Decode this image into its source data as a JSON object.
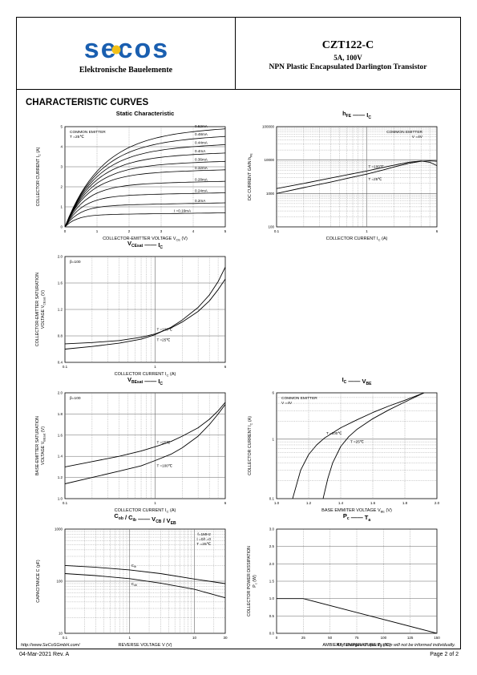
{
  "header": {
    "logo_text": "secos",
    "company": "Elektronische Bauelemente",
    "part_number": "CZT122-C",
    "rating": "5A, 100V",
    "description": "NPN Plastic Encapsulated Darlington Transistor",
    "logo_color": "#1a5fb0",
    "logo_accent": "#f2c018"
  },
  "section_title": "CHARACTERISTIC CURVES",
  "footer": {
    "url": "http://www.SeCoSGmbH.com/",
    "note": "Any changes of specification will not be informed individually.",
    "revision": "04-Mar-2021  Rev. A",
    "page": "Page  2  of  2"
  },
  "chart_data": [
    {
      "id": "static",
      "type": "line",
      "title": "Static Characteristic",
      "xlabel": "COLLECTOR-EMITTER VOLTAGE   V",
      "xlabel_sub": "CE",
      "xlabel_unit": "(V)",
      "ylabel": "COLLECTOR CURRENT   I",
      "ylabel_sub": "C",
      "ylabel_unit": "(A)",
      "xscale": "linear",
      "yscale": "linear",
      "xlim": [
        0,
        5
      ],
      "ylim": [
        0,
        5
      ],
      "xticks": [
        0,
        1,
        2,
        3,
        4,
        5
      ],
      "yticks": [
        0,
        1,
        2,
        3,
        4,
        5
      ],
      "xtick_labels": [
        "0",
        "1",
        "2",
        "3",
        "4",
        "5"
      ],
      "ytick_labels": [
        "0",
        "1",
        "2",
        "3",
        "4",
        "5"
      ],
      "notes": [
        "COMMON EMITTER",
        "T =25℃"
      ],
      "note_pos": "top-left",
      "series": [
        {
          "label": "0.52mA",
          "sat": 4.65,
          "slope": 0.06
        },
        {
          "label": "0.48mA",
          "sat": 4.25,
          "slope": 0.06
        },
        {
          "label": "0.44mA",
          "sat": 3.85,
          "slope": 0.055
        },
        {
          "label": "0.4mA",
          "sat": 3.45,
          "slope": 0.05
        },
        {
          "label": "0.36mA",
          "sat": 3.05,
          "slope": 0.045
        },
        {
          "label": "0.32mA",
          "sat": 2.65,
          "slope": 0.04
        },
        {
          "label": "0.28mA",
          "sat": 2.1,
          "slope": 0.035
        },
        {
          "label": "0.24mA",
          "sat": 1.55,
          "slope": 0.03
        },
        {
          "label": "0.2mA",
          "sat": 1.05,
          "slope": 0.03
        },
        {
          "label": "I =0.16mA",
          "sat": 0.6,
          "slope": 0.02
        }
      ]
    },
    {
      "id": "hfe",
      "type": "line",
      "title": "h",
      "title_sub": "FE",
      "title_sep": "——",
      "title_right": "I",
      "title_right_sub": "C",
      "xlabel": "COLLECTOR CURRENT   I",
      "xlabel_sub": "C",
      "xlabel_unit": "(A)",
      "ylabel": "DC CURRENT GAIN   h",
      "ylabel_sub": "FE",
      "ylabel_unit": "",
      "xscale": "log",
      "yscale": "log",
      "xlim": [
        0.1,
        6
      ],
      "ylim": [
        100,
        100000
      ],
      "xticks": [
        0.1,
        1,
        6
      ],
      "yticks": [
        100,
        1000,
        10000,
        100000
      ],
      "xtick_labels": [
        "0.1",
        "1",
        "6"
      ],
      "ytick_labels": [
        "100",
        "1000",
        "10000",
        "100000"
      ],
      "notes": [
        "COMMON EMITTER",
        "V =4V"
      ],
      "note_pos": "top-right",
      "series": [
        {
          "label": "T =100℃",
          "x": [
            0.1,
            0.2,
            0.4,
            0.7,
            1,
            1.5,
            2,
            3,
            4,
            5,
            6
          ],
          "y": [
            1400,
            2000,
            2900,
            3900,
            4700,
            6000,
            7000,
            8700,
            9400,
            8600,
            6800
          ]
        },
        {
          "label": "T =25℃",
          "x": [
            0.1,
            0.2,
            0.4,
            0.7,
            1,
            1.5,
            2,
            3,
            4,
            5,
            6
          ],
          "y": [
            1000,
            1500,
            2200,
            3100,
            3800,
            5000,
            6200,
            8100,
            9200,
            9500,
            9300
          ]
        }
      ]
    },
    {
      "id": "vcesat",
      "type": "line",
      "title": "V",
      "title_sub": "CEsat",
      "title_sep": "——",
      "title_right": "I",
      "title_right_sub": "C",
      "xlabel": "COLLECTOR CURRENT   I",
      "xlabel_sub": "C",
      "xlabel_unit": "(A)",
      "ylabel": "COLLECTOR-EMITTER SATURATION\nVOLTAGE   V",
      "ylabel_sub": "CEsat",
      "ylabel_unit": "(V)",
      "xscale": "log",
      "yscale": "linear",
      "xlim": [
        0.1,
        6
      ],
      "ylim": [
        0.4,
        2.0
      ],
      "xticks": [
        0.1,
        1,
        6
      ],
      "yticks": [
        0.4,
        0.8,
        1.2,
        1.6,
        2.0
      ],
      "xtick_labels": [
        "0.1",
        "1",
        "6"
      ],
      "ytick_labels": [
        "0.4",
        "0.8",
        "1.2",
        "1.6",
        "2.0"
      ],
      "notes": [
        "β=100"
      ],
      "note_pos": "top-left",
      "series": [
        {
          "label": "T =100℃",
          "x": [
            0.1,
            0.2,
            0.4,
            0.7,
            1,
            1.5,
            2,
            3,
            4,
            5,
            6
          ],
          "y": [
            0.68,
            0.7,
            0.73,
            0.78,
            0.83,
            0.92,
            1.01,
            1.17,
            1.33,
            1.5,
            1.66
          ]
        },
        {
          "label": "T =25℃",
          "x": [
            0.1,
            0.2,
            0.4,
            0.7,
            1,
            1.5,
            2,
            3,
            4,
            5,
            6
          ],
          "y": [
            0.6,
            0.64,
            0.69,
            0.75,
            0.82,
            0.93,
            1.04,
            1.23,
            1.42,
            1.62,
            1.84
          ]
        }
      ]
    },
    {
      "id": "vbesat",
      "type": "line",
      "title": "V",
      "title_sub": "BEsat",
      "title_sep": "——",
      "title_right": "I",
      "title_right_sub": "C",
      "xlabel": "COLLECTOR CURRENT   I",
      "xlabel_sub": "C",
      "xlabel_unit": "(A)",
      "ylabel": "BASE-EMITTER SATURATION\nVOLTAGE   V",
      "ylabel_sub": "BEsat",
      "ylabel_unit": "(V)",
      "xscale": "log",
      "yscale": "linear",
      "xlim": [
        0.1,
        6
      ],
      "ylim": [
        1.0,
        2.0
      ],
      "xticks": [
        0.1,
        1,
        6
      ],
      "yticks": [
        1.0,
        1.2,
        1.4,
        1.6,
        1.8,
        2.0
      ],
      "xtick_labels": [
        "0.1",
        "1",
        "6"
      ],
      "ytick_labels": [
        "1.0",
        "1.2",
        "1.4",
        "1.6",
        "1.8",
        "2.0"
      ],
      "notes": [
        "β=100"
      ],
      "note_pos": "top-left",
      "series": [
        {
          "label": "T =25℃",
          "x": [
            0.1,
            0.2,
            0.4,
            0.7,
            1,
            1.5,
            2,
            3,
            4,
            5,
            6
          ],
          "y": [
            1.3,
            1.35,
            1.4,
            1.45,
            1.49,
            1.54,
            1.59,
            1.67,
            1.75,
            1.83,
            1.91
          ]
        },
        {
          "label": "T =100℃",
          "x": [
            0.1,
            0.2,
            0.4,
            0.7,
            1,
            1.5,
            2,
            3,
            4,
            5,
            6
          ],
          "y": [
            1.14,
            1.2,
            1.26,
            1.31,
            1.36,
            1.42,
            1.48,
            1.59,
            1.7,
            1.8,
            1.89
          ]
        }
      ]
    },
    {
      "id": "icvbe",
      "type": "line",
      "title": "I",
      "title_sub": "C",
      "title_sep": "——",
      "title_right": "V",
      "title_right_sub": "BE",
      "xlabel": "BASE EMMITER VOLTAGE   V",
      "xlabel_sub": "BE",
      "xlabel_unit": "(V)",
      "ylabel": "COLLECTOR CURRENT   I",
      "ylabel_sub": "C",
      "ylabel_unit": "(A)",
      "xscale": "linear",
      "yscale": "log",
      "xlim": [
        1.0,
        2.0
      ],
      "ylim": [
        0.1,
        6
      ],
      "xticks": [
        1.0,
        1.2,
        1.4,
        1.6,
        1.8,
        2.0
      ],
      "yticks": [
        0.1,
        1,
        6
      ],
      "xtick_labels": [
        "1.0",
        "1.2",
        "1.4",
        "1.6",
        "1.8",
        "2.0"
      ],
      "ytick_labels": [
        "0.1",
        "1",
        "6"
      ],
      "notes": [
        "COMMON EMITTER",
        "V =4V"
      ],
      "note_pos": "top-left",
      "series": [
        {
          "label": "T =100℃",
          "x": [
            1.1,
            1.15,
            1.2,
            1.25,
            1.3,
            1.4,
            1.5,
            1.6,
            1.7,
            1.8,
            1.92
          ],
          "y": [
            0.1,
            0.3,
            0.55,
            0.8,
            1.05,
            1.55,
            2.1,
            2.8,
            3.6,
            4.5,
            6.0
          ]
        },
        {
          "label": "T =25℃",
          "x": [
            1.29,
            1.32,
            1.35,
            1.4,
            1.45,
            1.5,
            1.6,
            1.7,
            1.8,
            1.92
          ],
          "y": [
            0.1,
            0.22,
            0.4,
            0.75,
            1.1,
            1.45,
            2.2,
            3.1,
            4.2,
            6.0
          ]
        }
      ]
    },
    {
      "id": "cap",
      "type": "line",
      "title": "C",
      "title_sub": "ob",
      "title_mid": " / C",
      "title_mid_sub": "ib",
      "title_sep": "——",
      "title_right": "V",
      "title_right_sub": "CB",
      "title_right2": " / V",
      "title_right2_sub": "EB",
      "xlabel": "REVERSE VOLTAGE   V",
      "xlabel_sub": "",
      "xlabel_unit": "(V)",
      "ylabel": "CAPACITANCE   C",
      "ylabel_sub": "",
      "ylabel_unit": "(pF)",
      "xscale": "log",
      "yscale": "log",
      "xlim": [
        0.1,
        30
      ],
      "ylim": [
        10,
        1000
      ],
      "xticks": [
        0.1,
        1,
        10,
        30
      ],
      "yticks": [
        10,
        100,
        1000
      ],
      "xtick_labels": [
        "0.1",
        "1",
        "10",
        "30"
      ],
      "ytick_labels": [
        "10",
        "100",
        "1000"
      ],
      "notes": [
        "f=1MHz",
        "I =0/I =0",
        "T =25℃"
      ],
      "note_pos": "top-right",
      "series": [
        {
          "label": "C",
          "label_sub": "ib",
          "x": [
            0.1,
            0.3,
            1,
            3,
            10,
            30
          ],
          "y": [
            200,
            185,
            165,
            140,
            110,
            90
          ]
        },
        {
          "label": "C",
          "label_sub": "ob",
          "x": [
            0.1,
            0.3,
            1,
            3,
            10,
            30
          ],
          "y": [
            140,
            128,
            112,
            92,
            70,
            48
          ]
        }
      ]
    },
    {
      "id": "power",
      "type": "line",
      "title": "P",
      "title_sub": "c",
      "title_sep": "——",
      "title_right": "T",
      "title_right_sub": "a",
      "xlabel": "AMBIENT TEMPERATURE   T",
      "xlabel_sub": "a",
      "xlabel_unit": "(℃)",
      "ylabel": "COLLECTOR POWER DISSIPATION\nP",
      "ylabel_sub": "c",
      "ylabel_unit": "(W)",
      "xscale": "linear",
      "yscale": "linear",
      "xlim": [
        0,
        150
      ],
      "ylim": [
        0,
        3.0
      ],
      "xticks": [
        0,
        25,
        50,
        75,
        100,
        125,
        150
      ],
      "yticks": [
        0,
        0.5,
        1.0,
        1.5,
        2.0,
        2.5,
        3.0
      ],
      "xtick_labels": [
        "0",
        "25",
        "50",
        "75",
        "100",
        "125",
        "150"
      ],
      "ytick_labels": [
        "0.0",
        "0.5",
        "1.0",
        "1.5",
        "2.0",
        "2.5",
        "3.0"
      ],
      "notes": [],
      "series": [
        {
          "label": "",
          "x": [
            0,
            25,
            150
          ],
          "y": [
            1.0,
            1.0,
            0
          ]
        }
      ]
    }
  ]
}
